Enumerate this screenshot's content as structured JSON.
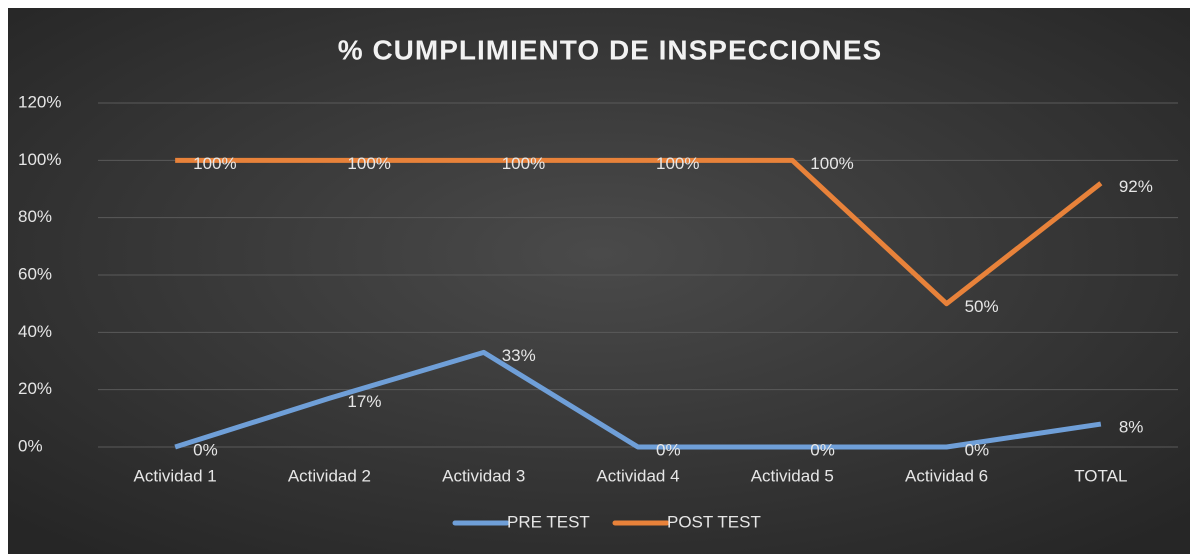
{
  "chart_data": {
    "type": "line",
    "title": "% CUMPLIMIENTO DE INSPECCIONES",
    "categories": [
      "Actividad 1",
      "Actividad 2",
      "Actividad 3",
      "Actividad 4",
      "Actividad 5",
      "Actividad 6",
      "TOTAL"
    ],
    "series": [
      {
        "name": "PRE TEST",
        "color": "#6f9fd8",
        "values": [
          0,
          17,
          33,
          0,
          0,
          0,
          8
        ],
        "value_labels": [
          "0%",
          "17%",
          "33%",
          "0%",
          "0%",
          "0%",
          "8%"
        ]
      },
      {
        "name": "POST TEST",
        "color": "#e8823a",
        "values": [
          100,
          100,
          100,
          100,
          100,
          50,
          92
        ],
        "value_labels": [
          "100%",
          "100%",
          "100%",
          "100%",
          "100%",
          "50%",
          "92%"
        ]
      }
    ],
    "ylim": [
      0,
      120
    ],
    "yticks": [
      {
        "value": 0,
        "label": "0%"
      },
      {
        "value": 20,
        "label": "20%"
      },
      {
        "value": 40,
        "label": "40%"
      },
      {
        "value": 60,
        "label": "60%"
      },
      {
        "value": 80,
        "label": "80%"
      },
      {
        "value": 100,
        "label": "100%"
      },
      {
        "value": 120,
        "label": "120%"
      }
    ],
    "grid": true,
    "legend": "bottom"
  }
}
